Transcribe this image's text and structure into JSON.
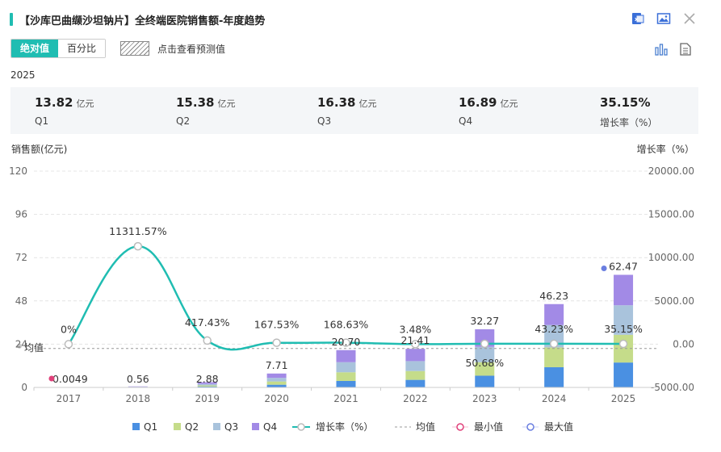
{
  "header": {
    "title": "【沙库巴曲缬沙坦钠片】全终端医院销售额-年度趋势"
  },
  "toolbar": {
    "mode_absolute": "绝对值",
    "mode_percent": "百分比",
    "forecast_label": "点击查看预测值"
  },
  "year_label": "2025",
  "kpis": [
    {
      "value": "13.82",
      "unit": "亿元",
      "label": "Q1"
    },
    {
      "value": "15.38",
      "unit": "亿元",
      "label": "Q2"
    },
    {
      "value": "16.38",
      "unit": "亿元",
      "label": "Q3"
    },
    {
      "value": "16.89",
      "unit": "亿元",
      "label": "Q4"
    },
    {
      "value": "35.15%",
      "unit": "",
      "label": "增长率（%）"
    }
  ],
  "chart_data": {
    "type": "bar",
    "stacked": true,
    "categories": [
      "2017",
      "2018",
      "2019",
      "2020",
      "2021",
      "2022",
      "2023",
      "2024",
      "2025"
    ],
    "ylabel": "销售额(亿元)",
    "y2label": "增长率（%）",
    "ylim": [
      0,
      120
    ],
    "y_ticks": [
      0,
      24,
      48,
      72,
      96,
      120
    ],
    "y2lim": [
      -5000,
      20000
    ],
    "y2_ticks": [
      -5000,
      0,
      5000,
      10000,
      15000,
      20000
    ],
    "totals": [
      "0.0049",
      "0.56",
      "2.88",
      "7.71",
      "20.70",
      "21.41",
      "32.27",
      "46.23",
      "62.47"
    ],
    "total_values": [
      0.0049,
      0.56,
      2.88,
      7.71,
      20.7,
      21.41,
      32.27,
      46.23,
      62.47
    ],
    "series": [
      {
        "name": "Q1",
        "color": "#4a90e2",
        "values": [
          0.001,
          0.1,
          0.5,
          1.5,
          3.6,
          4.2,
          6.5,
          11.2,
          13.82
        ]
      },
      {
        "name": "Q2",
        "color": "#c5dc8a",
        "values": [
          0.001,
          0.1,
          0.6,
          1.8,
          4.8,
          4.9,
          7.5,
          11.0,
          15.38
        ]
      },
      {
        "name": "Q3",
        "color": "#a9c3dc",
        "values": [
          0.001,
          0.15,
          0.8,
          2.0,
          5.6,
          5.5,
          8.5,
          12.4,
          16.38
        ]
      },
      {
        "name": "Q4",
        "color": "#a28ae6",
        "values": [
          0.0019,
          0.21,
          0.98,
          2.41,
          6.7,
          6.81,
          9.77,
          11.63,
          16.89
        ]
      }
    ],
    "growth": {
      "name": "增长率（%）",
      "color": "#20bdb2",
      "values": [
        0,
        11311.57,
        417.43,
        167.53,
        168.63,
        3.48,
        50.68,
        43.23,
        35.15
      ],
      "labels": [
        "0%",
        "11311.57%",
        "417.43%",
        "167.53%",
        "168.63%",
        "3.48%",
        "50.68%",
        "43.23%",
        "35.15%"
      ]
    },
    "average": {
      "name": "均值",
      "label": "均值",
      "value": 21.58
    },
    "min_marker": {
      "name": "最小值",
      "color": "#e0407a",
      "category": "2017",
      "value": 0.0049
    },
    "max_marker": {
      "name": "最大值",
      "color": "#6a7ee0",
      "category": "2025",
      "value": 62.47
    },
    "legend": [
      "Q1",
      "Q2",
      "Q3",
      "Q4",
      "增长率（%）",
      "均值",
      "最小值",
      "最大值"
    ],
    "legend_position": "bottom",
    "grid": true
  }
}
